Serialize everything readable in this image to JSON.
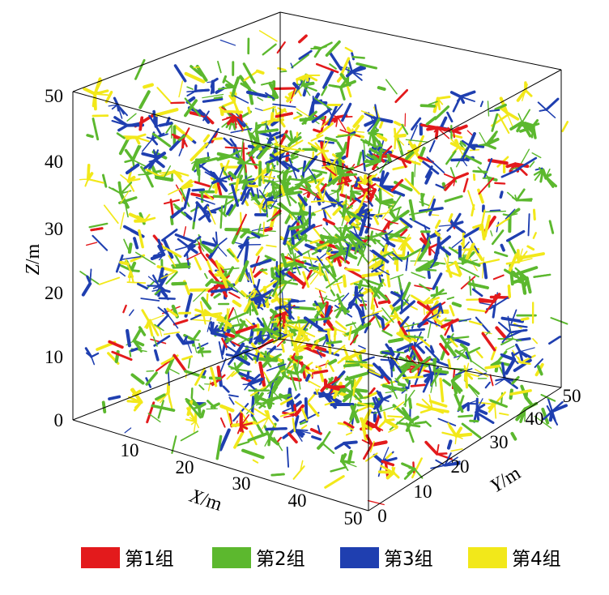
{
  "figure": {
    "colors": {
      "group1": "#e31a1c",
      "group2": "#5cb82e",
      "group3": "#1f3fb0",
      "group4": "#f2e81a",
      "frame": "#000000"
    },
    "axes": {
      "z": {
        "var": "Z",
        "unit": "/m",
        "ticks": [
          "0",
          "10",
          "20",
          "30",
          "40",
          "50"
        ]
      },
      "x": {
        "var": "X",
        "unit": "/m",
        "ticks": [
          "10",
          "20",
          "30",
          "40",
          "50"
        ]
      },
      "y": {
        "var": "Y",
        "unit": "/m",
        "ticks": [
          "0",
          "10",
          "20",
          "30",
          "40",
          "50"
        ]
      }
    },
    "legend": [
      {
        "label": "第1组",
        "color_key": "group1"
      },
      {
        "label": "第2组",
        "color_key": "group2"
      },
      {
        "label": "第3组",
        "color_key": "group3"
      },
      {
        "label": "第4组",
        "color_key": "group4"
      }
    ]
  }
}
